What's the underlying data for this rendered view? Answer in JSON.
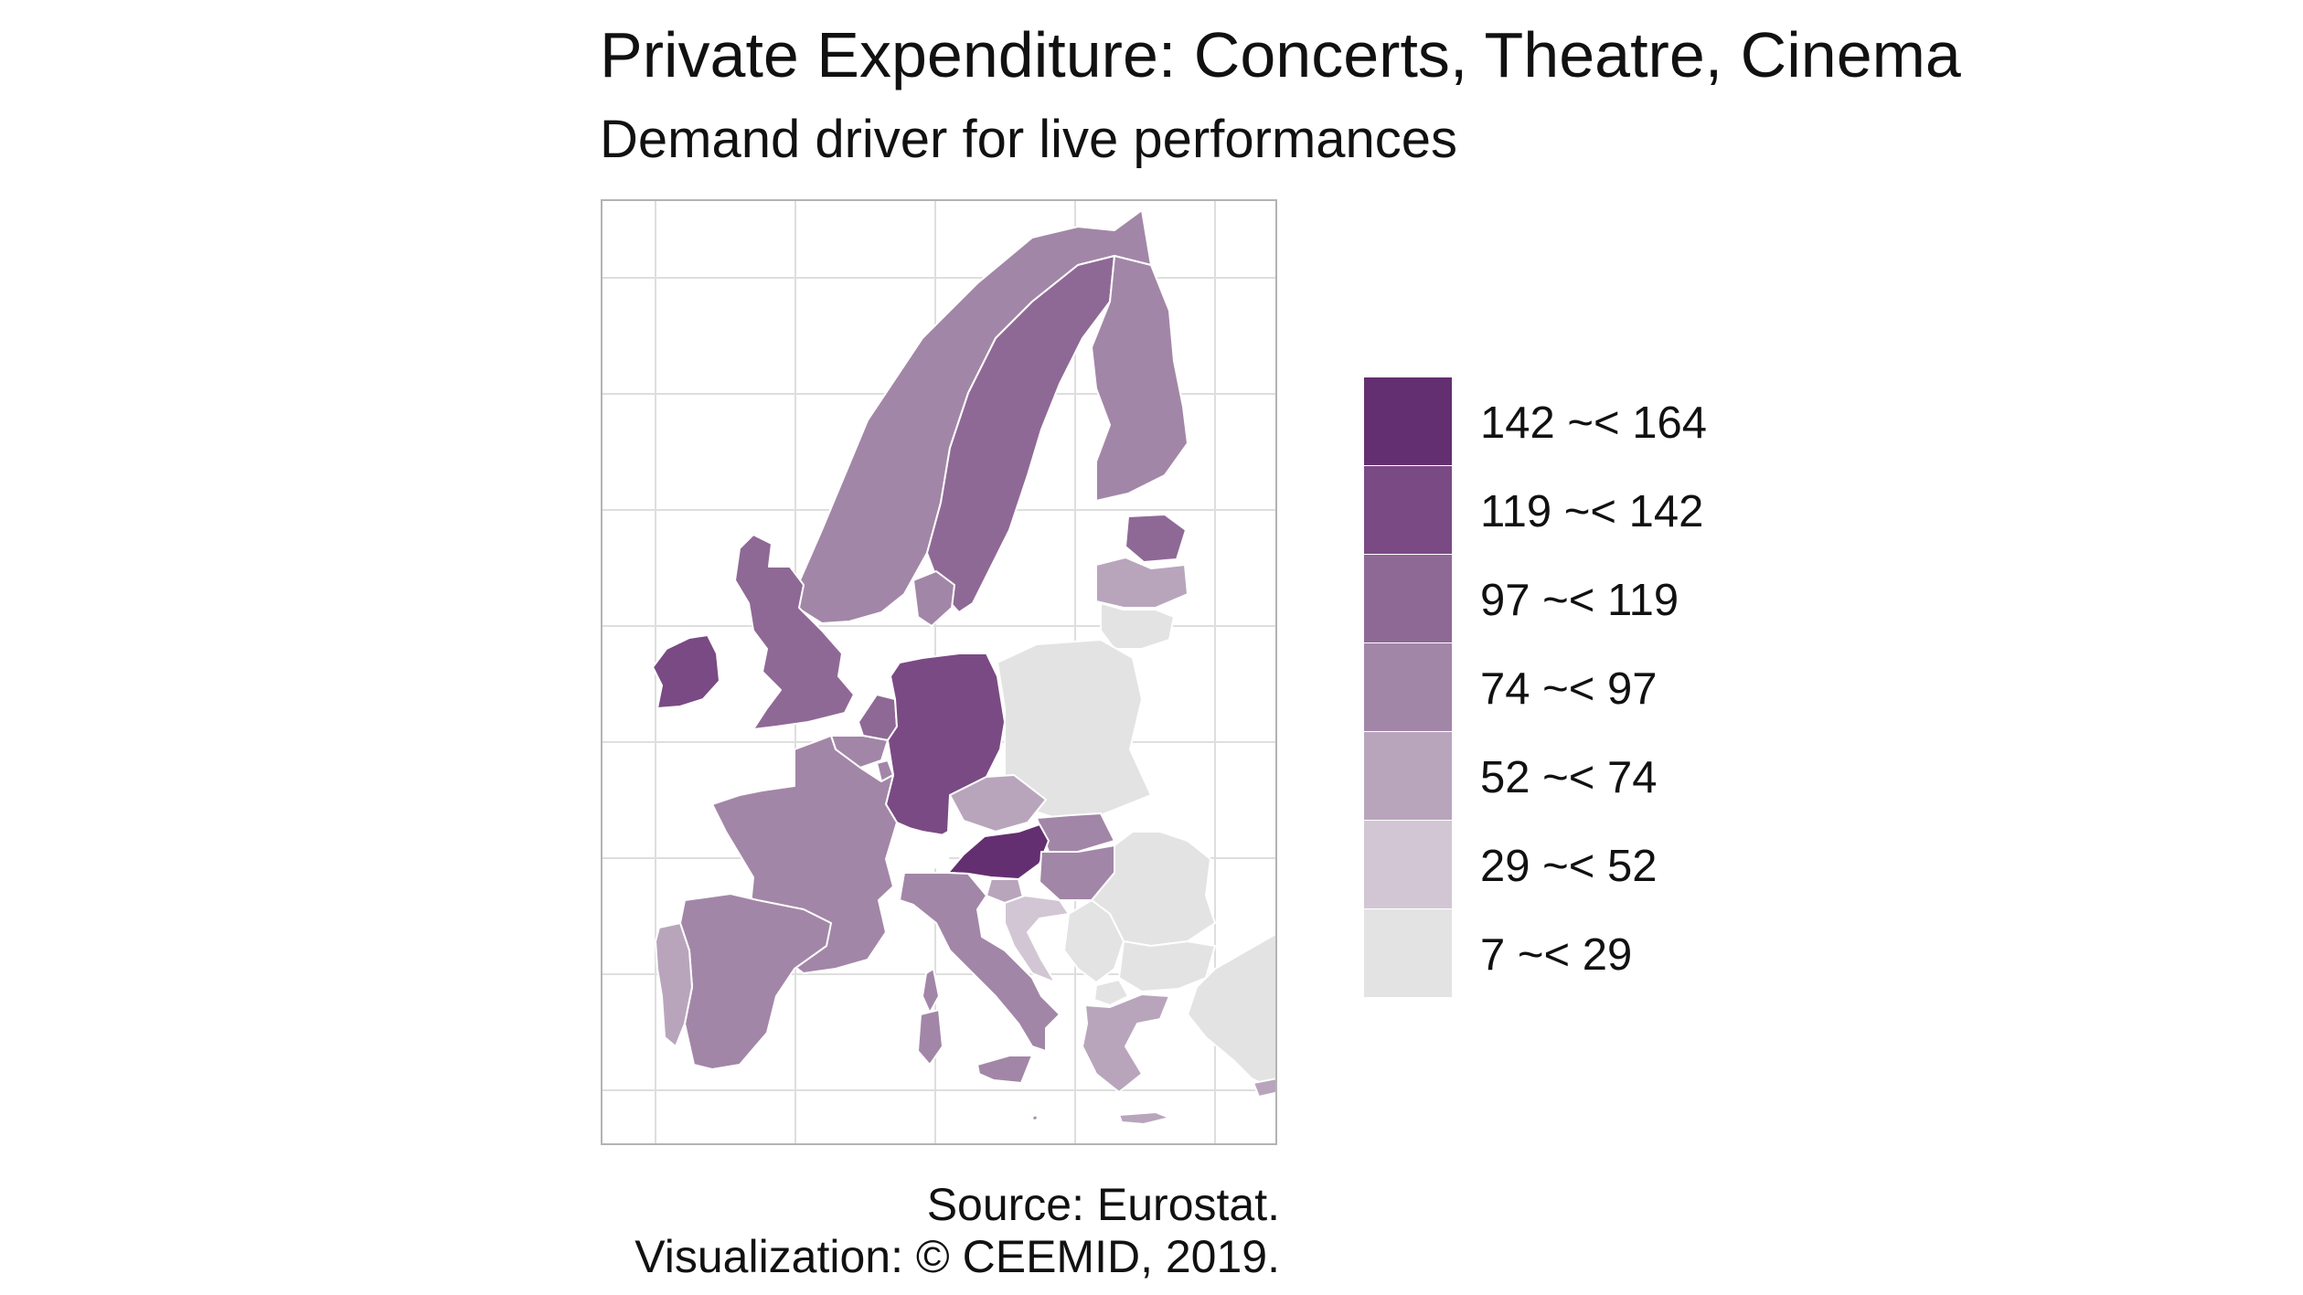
{
  "title": "Private Expenditure: Concerts, Theatre, Cinema",
  "subtitle": "Demand driver for live performances",
  "caption": {
    "source": "Source: Eurostat.",
    "credit": "Visualization: © CEEMID, 2019."
  },
  "legend": {
    "items": [
      {
        "label": "142 ~< 164",
        "color": "#642f70"
      },
      {
        "label": "119 ~< 142",
        "color": "#7a4a84"
      },
      {
        "label": "97 ~< 119",
        "color": "#8f6996"
      },
      {
        "label": "74 ~< 97",
        "color": "#a286a7"
      },
      {
        "label": "52 ~< 74",
        "color": "#b8a5bc"
      },
      {
        "label": "29 ~< 52",
        "color": "#d2c6d4"
      },
      {
        "label": "7 ~< 29",
        "color": "#e3e3e3"
      }
    ]
  },
  "map": {
    "regions": [
      {
        "name": "Ireland",
        "class": "119 ~< 142"
      },
      {
        "name": "United Kingdom",
        "class": "97 ~< 119"
      },
      {
        "name": "Sweden",
        "class": "97 ~< 119"
      },
      {
        "name": "Finland",
        "class": "74 ~< 97"
      },
      {
        "name": "Norway",
        "class": "74 ~< 97"
      },
      {
        "name": "Estonia",
        "class": "97 ~< 119"
      },
      {
        "name": "Latvia",
        "class": "52 ~< 74"
      },
      {
        "name": "Lithuania",
        "class": "7 ~< 29"
      },
      {
        "name": "Denmark",
        "class": "74 ~< 97"
      },
      {
        "name": "Netherlands",
        "class": "97 ~< 119"
      },
      {
        "name": "Belgium",
        "class": "74 ~< 97"
      },
      {
        "name": "Luxembourg",
        "class": "74 ~< 97"
      },
      {
        "name": "Germany",
        "class": "119 ~< 142"
      },
      {
        "name": "Poland",
        "class": "7 ~< 29"
      },
      {
        "name": "Czechia",
        "class": "52 ~< 74"
      },
      {
        "name": "Slovakia",
        "class": "74 ~< 97"
      },
      {
        "name": "Austria",
        "class": "142 ~< 164"
      },
      {
        "name": "Hungary",
        "class": "74 ~< 97"
      },
      {
        "name": "Slovenia",
        "class": "52 ~< 74"
      },
      {
        "name": "Croatia",
        "class": "29 ~< 52"
      },
      {
        "name": "Switzerland",
        "class": "no data"
      },
      {
        "name": "France",
        "class": "74 ~< 97"
      },
      {
        "name": "Spain",
        "class": "74 ~< 97"
      },
      {
        "name": "Portugal",
        "class": "52 ~< 74"
      },
      {
        "name": "Italy",
        "class": "74 ~< 97"
      },
      {
        "name": "Romania",
        "class": "7 ~< 29"
      },
      {
        "name": "Bulgaria",
        "class": "7 ~< 29"
      },
      {
        "name": "Serbia",
        "class": "7 ~< 29"
      },
      {
        "name": "North Macedonia",
        "class": "7 ~< 29"
      },
      {
        "name": "Greece",
        "class": "52 ~< 74"
      },
      {
        "name": "Turkey",
        "class": "7 ~< 29"
      },
      {
        "name": "Cyprus",
        "class": "52 ~< 74"
      },
      {
        "name": "Malta",
        "class": "74 ~< 97"
      }
    ]
  }
}
